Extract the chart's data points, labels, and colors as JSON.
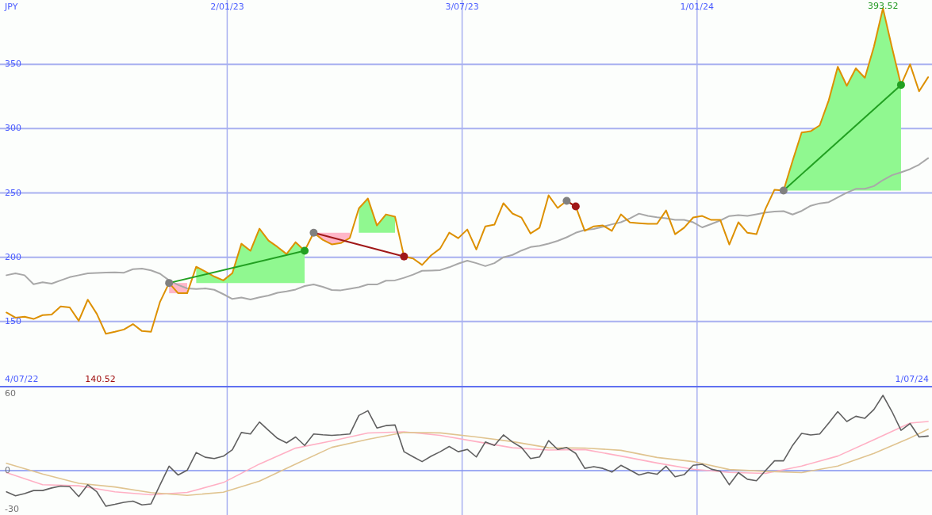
{
  "chart_data": [
    {
      "type": "line",
      "ylabel": "JPY",
      "xlim": [
        "2022-07-10",
        "2024-07-01"
      ],
      "ylim": [
        100,
        400
      ],
      "xticks": [
        {
          "value": "2023-01-02",
          "label": "2/01/23"
        },
        {
          "value": "2023-07-03",
          "label": "3/07/23"
        },
        {
          "value": "2024-01-01",
          "label": "1/01/24"
        }
      ],
      "yticks": [
        150,
        200,
        250,
        300,
        350
      ],
      "grid": true,
      "x": [
        "2022-07-15",
        "2022-07-22",
        "2022-07-29",
        "2022-08-05",
        "2022-08-12",
        "2022-08-19",
        "2022-08-26",
        "2022-09-02",
        "2022-09-09",
        "2022-09-16",
        "2022-09-23",
        "2022-09-30",
        "2022-10-07",
        "2022-10-14",
        "2022-10-21",
        "2022-10-28",
        "2022-11-04",
        "2022-11-11",
        "2022-11-18",
        "2022-11-25",
        "2022-12-02",
        "2022-12-09",
        "2022-12-16",
        "2022-12-23",
        "2022-12-30",
        "2023-01-06",
        "2023-01-13",
        "2023-01-20",
        "2023-01-27",
        "2023-02-03",
        "2023-02-10",
        "2023-02-17",
        "2023-02-24",
        "2023-03-03",
        "2023-03-10",
        "2023-03-17",
        "2023-03-24",
        "2023-03-31",
        "2023-04-07",
        "2023-04-14",
        "2023-04-21",
        "2023-04-28",
        "2023-05-05",
        "2023-05-12",
        "2023-05-19",
        "2023-05-26",
        "2023-06-02",
        "2023-06-09",
        "2023-06-16",
        "2023-06-23",
        "2023-06-30",
        "2023-07-07",
        "2023-07-14",
        "2023-07-21",
        "2023-07-28",
        "2023-08-04",
        "2023-08-11",
        "2023-08-18",
        "2023-08-25",
        "2023-09-01",
        "2023-09-08",
        "2023-09-15",
        "2023-09-22",
        "2023-09-29",
        "2023-10-06",
        "2023-10-13",
        "2023-10-20",
        "2023-10-27",
        "2023-11-03",
        "2023-11-10",
        "2023-11-17",
        "2023-11-24",
        "2023-12-01",
        "2023-12-08",
        "2023-12-15",
        "2023-12-22",
        "2023-12-29",
        "2024-01-05",
        "2024-01-12",
        "2024-01-19",
        "2024-01-26",
        "2024-02-02",
        "2024-02-09",
        "2024-02-16",
        "2024-02-23",
        "2024-03-01",
        "2024-03-08",
        "2024-03-15",
        "2024-03-22",
        "2024-03-29",
        "2024-04-05",
        "2024-04-12",
        "2024-04-19",
        "2024-04-26",
        "2024-05-03",
        "2024-05-10",
        "2024-05-17",
        "2024-05-24",
        "2024-05-31",
        "2024-06-07",
        "2024-06-14",
        "2024-06-21",
        "2024-06-28"
      ],
      "series": [
        {
          "color": "#ffb6c8",
          "x": [
            "2022-11-18",
            "2022-11-25",
            "2022-12-02"
          ],
          "values": [
            null,
            null,
            null
          ],
          "lower": [
            172,
            172,
            172
          ],
          "upper": [
            180,
            180,
            180
          ]
        },
        {
          "color": "#90f890",
          "x": [
            "2022-12-09",
            "2022-12-16",
            "2022-12-23",
            "2022-12-30",
            "2023-01-06",
            "2023-01-13",
            "2023-01-20",
            "2023-01-27",
            "2023-02-03",
            "2023-02-10",
            "2023-02-17",
            "2023-02-24",
            "2023-03-03"
          ],
          "values": [
            null,
            null,
            null,
            null,
            null,
            null,
            null,
            null,
            null,
            null,
            null,
            null,
            null
          ],
          "lower": [
            180,
            180,
            180,
            180,
            180,
            180,
            180,
            180,
            180,
            180,
            180,
            180,
            180
          ],
          "upper": [
            192.6,
            188.9,
            185,
            182,
            187.6,
            210.5,
            205,
            222.2,
            213,
            208,
            202.5,
            211.7,
            205
          ]
        },
        {
          "color": "#ffb6c8",
          "x": [
            "2023-03-10",
            "2023-03-17",
            "2023-03-24",
            "2023-03-31",
            "2023-04-07"
          ],
          "values": [
            null,
            null,
            null,
            null,
            null
          ],
          "lower": [
            219,
            213.6,
            210,
            211,
            215
          ],
          "upper": [
            219,
            219,
            219,
            219,
            219
          ]
        },
        {
          "color": "#90f890",
          "x": [
            "2023-04-14",
            "2023-04-21",
            "2023-04-28",
            "2023-05-05",
            "2023-05-12"
          ],
          "values": [
            null,
            null,
            null,
            null,
            null
          ],
          "lower": [
            219,
            219,
            219,
            219,
            219
          ],
          "upper": [
            238,
            245.7,
            224.7,
            233.3,
            231.5
          ]
        },
        {
          "color": "#90f890",
          "x": [
            "2024-03-08",
            "2024-03-15",
            "2024-03-22",
            "2024-03-29",
            "2024-04-05",
            "2024-04-12",
            "2024-04-19",
            "2024-04-26",
            "2024-05-03",
            "2024-05-10",
            "2024-05-17",
            "2024-05-24",
            "2024-05-31",
            "2024-06-07"
          ],
          "values": [
            null,
            null,
            null,
            null,
            null,
            null,
            null,
            null,
            null,
            null,
            null,
            null,
            null,
            null
          ],
          "lower": [
            251.9,
            251.9,
            251.9,
            251.9,
            251.9,
            251.9,
            251.9,
            251.9,
            251.9,
            251.9,
            251.9,
            251.9,
            251.9,
            251.9
          ],
          "upper": [
            251.9,
            275,
            297,
            298,
            302.5,
            322,
            348.1,
            333.3,
            346.9,
            339.5,
            363.6,
            393.52,
            363,
            334
          ]
        },
        {
          "color": "#a8a8a8",
          "values": [
            186,
            187.5,
            186,
            179,
            180.5,
            179.5,
            182,
            184.5,
            186,
            187.5,
            187.8,
            188.1,
            188.2,
            188,
            190.7,
            191.2,
            189.8,
            187.2,
            182,
            178.5,
            175.8,
            175.3,
            175.7,
            174.7,
            171.3,
            167.6,
            168.7,
            167.1,
            168.8,
            170.2,
            172.4,
            173.5,
            174.9,
            177.6,
            178.8,
            177,
            174.5,
            174.3,
            175.5,
            176.7,
            178.8,
            178.8,
            181.8,
            182,
            184,
            186.5,
            189.5,
            189.7,
            190,
            192.2,
            195,
            197.3,
            195.4,
            193.1,
            195.4,
            200,
            201.8,
            205.2,
            207.9,
            208.9,
            210.6,
            212.7,
            215.5,
            219,
            221.2,
            222,
            223.7,
            225.6,
            227.2,
            230.2,
            233.9,
            232.1,
            231,
            230.3,
            229,
            229,
            227.2,
            223.2,
            225.8,
            228.6,
            232,
            232.8,
            232.2,
            233.4,
            234.7,
            235.5,
            235.8,
            233.2,
            236,
            240,
            241.9,
            242.8,
            246.5,
            250.2,
            253.2,
            253.2,
            255.3,
            260,
            263.8,
            266,
            268.5,
            272,
            277
          ]
        },
        {
          "color": "#dd9000",
          "values": [
            157,
            153,
            153.7,
            152,
            155,
            155.5,
            161.7,
            161,
            150.6,
            167,
            156,
            140.52,
            142,
            143.8,
            148,
            142.6,
            142,
            165.4,
            180,
            172,
            172,
            192.6,
            188.9,
            185,
            182,
            187.6,
            210.5,
            205,
            222.2,
            213,
            208,
            202.5,
            211.7,
            205,
            219,
            213.6,
            210,
            211,
            215,
            238,
            245.7,
            224.7,
            233.3,
            231.5,
            200.6,
            199,
            194,
            201.5,
            206.8,
            219.1,
            214.8,
            221.6,
            206,
            224,
            225.3,
            242,
            234,
            230.8,
            218.5,
            223,
            248.1,
            238.3,
            243.8,
            239.5,
            220.5,
            224,
            224.7,
            220.5,
            233.3,
            227,
            226.5,
            226,
            226,
            236.4,
            217.9,
            223,
            230.9,
            232.1,
            229,
            229,
            209.9,
            227.2,
            219,
            217.9,
            237.6,
            252.5,
            251.9,
            275,
            297,
            298,
            302.5,
            322,
            348.1,
            333.3,
            346.9,
            339.5,
            363.6,
            393.52,
            363,
            334,
            350,
            329,
            340
          ]
        },
        {
          "color": "#22a022",
          "marker": "circle",
          "colors": [
            "#808080",
            "#22a022"
          ],
          "x": [
            "2022-11-18",
            "2023-03-03"
          ],
          "values": [
            180,
            205
          ]
        },
        {
          "color": "#a01818",
          "marker": "circle",
          "colors": [
            "#808080",
            "#a01818"
          ],
          "x": [
            "2023-03-10",
            "2023-05-19"
          ],
          "values": [
            219,
            200.6
          ]
        },
        {
          "color": "#a01818",
          "marker": "circle",
          "colors": [
            "#808080",
            "#a01818"
          ],
          "x": [
            "2023-09-22",
            "2023-09-29"
          ],
          "values": [
            243.8,
            239.5
          ]
        },
        {
          "color": "#22a022",
          "marker": "circle",
          "colors": [
            "#808080",
            "#22a022"
          ],
          "x": [
            "2024-03-08",
            "2024-06-07"
          ],
          "values": [
            251.9,
            334
          ]
        }
      ],
      "annotations": [
        "4/07/22",
        "140.52",
        "1/07/24",
        {
          "text": "393.52",
          "x": "2024-05-24",
          "y": 393.52
        }
      ]
    },
    {
      "type": "line",
      "xlim": [
        "2022-07-10",
        "2024-07-01"
      ],
      "ylim": [
        -34.6,
        65.6
      ],
      "xticks": [
        {
          "value": "2023-01-02",
          "label": null
        },
        {
          "value": "2023-07-03",
          "label": null
        },
        {
          "value": "2024-01-01",
          "label": null
        }
      ],
      "yticks": [
        60,
        0,
        -30
      ],
      "grid": "x",
      "tick_labels": "y",
      "ref_lines": [
        {
          "axis": "y",
          "value": 0
        }
      ],
      "x": [
        "2022-07-15",
        "2022-07-22",
        "2022-07-29",
        "2022-08-05",
        "2022-08-12",
        "2022-08-19",
        "2022-08-26",
        "2022-09-02",
        "2022-09-09",
        "2022-09-16",
        "2022-09-23",
        "2022-09-30",
        "2022-10-07",
        "2022-10-14",
        "2022-10-21",
        "2022-10-28",
        "2022-11-04",
        "2022-11-11",
        "2022-11-18",
        "2022-11-25",
        "2022-12-02",
        "2022-12-09",
        "2022-12-16",
        "2022-12-23",
        "2022-12-30",
        "2023-01-06",
        "2023-01-13",
        "2023-01-20",
        "2023-01-27",
        "2023-02-03",
        "2023-02-10",
        "2023-02-17",
        "2023-02-24",
        "2023-03-03",
        "2023-03-10",
        "2023-03-17",
        "2023-03-24",
        "2023-03-31",
        "2023-04-07",
        "2023-04-14",
        "2023-04-21",
        "2023-04-28",
        "2023-05-05",
        "2023-05-12",
        "2023-05-19",
        "2023-05-26",
        "2023-06-02",
        "2023-06-09",
        "2023-06-16",
        "2023-06-23",
        "2023-06-30",
        "2023-07-07",
        "2023-07-14",
        "2023-07-21",
        "2023-07-28",
        "2023-08-04",
        "2023-08-11",
        "2023-08-18",
        "2023-08-25",
        "2023-09-01",
        "2023-09-08",
        "2023-09-15",
        "2023-09-22",
        "2023-09-29",
        "2023-10-06",
        "2023-10-13",
        "2023-10-20",
        "2023-10-27",
        "2023-11-03",
        "2023-11-10",
        "2023-11-17",
        "2023-11-24",
        "2023-12-01",
        "2023-12-08",
        "2023-12-15",
        "2023-12-22",
        "2023-12-29",
        "2024-01-05",
        "2024-01-12",
        "2024-01-19",
        "2024-01-26",
        "2024-02-02",
        "2024-02-09",
        "2024-02-16",
        "2024-02-23",
        "2024-03-01",
        "2024-03-08",
        "2024-03-15",
        "2024-03-22",
        "2024-03-29",
        "2024-04-05",
        "2024-04-12",
        "2024-04-19",
        "2024-04-26",
        "2024-05-03",
        "2024-05-10",
        "2024-05-17",
        "2024-05-24",
        "2024-05-31",
        "2024-06-07",
        "2024-06-14",
        "2024-06-21",
        "2024-06-28"
      ],
      "series": [
        {
          "color": "#ffb0c4",
          "x": [
            "2022-07-15",
            "2022-08-12",
            "2022-09-09",
            "2022-10-07",
            "2022-11-04",
            "2022-12-02",
            "2022-12-30",
            "2023-01-27",
            "2023-02-24",
            "2023-03-24",
            "2023-04-21",
            "2023-05-19",
            "2023-06-16",
            "2023-07-14",
            "2023-08-11",
            "2023-09-08",
            "2023-10-06",
            "2023-11-03",
            "2023-12-01",
            "2023-12-29",
            "2024-01-26",
            "2024-02-23",
            "2024-03-22",
            "2024-04-19",
            "2024-05-17",
            "2024-06-14",
            "2024-06-28"
          ],
          "values": [
            -1.5,
            -10.9,
            -11.8,
            -16.5,
            -18.8,
            -17,
            -9.3,
            5.2,
            17.6,
            23.2,
            29.4,
            30.3,
            27.6,
            22.7,
            17.9,
            16.1,
            16.5,
            11.4,
            6,
            1.1,
            -1.4,
            -2.1,
            3.6,
            11.4,
            24.2,
            37.1,
            38.4
          ]
        },
        {
          "color": "#e0c490",
          "x": [
            "2022-07-15",
            "2022-08-12",
            "2022-09-09",
            "2022-10-07",
            "2022-11-04",
            "2022-12-02",
            "2022-12-30",
            "2023-01-27",
            "2023-02-24",
            "2023-03-24",
            "2023-04-21",
            "2023-05-19",
            "2023-06-16",
            "2023-07-14",
            "2023-08-11",
            "2023-09-08",
            "2023-10-06",
            "2023-11-03",
            "2023-12-01",
            "2023-12-29",
            "2024-01-26",
            "2024-02-23",
            "2024-03-22",
            "2024-04-19",
            "2024-05-17",
            "2024-06-14",
            "2024-06-28"
          ],
          "values": [
            5.8,
            -2.6,
            -9.9,
            -12.7,
            -17.1,
            -19.3,
            -16.8,
            -8.2,
            5.2,
            18.2,
            24.5,
            29.9,
            29.5,
            26.3,
            22.7,
            17.9,
            17.7,
            15.9,
            10.3,
            7.1,
            0.9,
            -0.5,
            -1.5,
            3.6,
            13.5,
            25.5,
            32.4
          ]
        },
        {
          "color": "#606060",
          "values": [
            -16.5,
            -19.6,
            -17.9,
            -15.5,
            -15.5,
            -13.5,
            -12,
            -12.5,
            -20.2,
            -11,
            -16.5,
            -27.7,
            -26.3,
            -24.7,
            -23.8,
            -26.7,
            -25.9,
            -11,
            3.5,
            -3.4,
            0.3,
            14.2,
            10.5,
            9.5,
            11.3,
            16.3,
            29.8,
            28.6,
            38,
            31.5,
            25.2,
            21.7,
            26.3,
            19.7,
            28.6,
            28,
            27.6,
            28,
            28.6,
            43.1,
            46.8,
            33.3,
            35.2,
            35.7,
            14.8,
            10.9,
            7.1,
            11.3,
            14.8,
            18.9,
            14.8,
            16.6,
            10.7,
            22.4,
            19.7,
            27.9,
            22.4,
            18.1,
            9.5,
            10.7,
            23.5,
            16.6,
            18.1,
            13.5,
            1.8,
            3.1,
            1.8,
            -1.1,
            4.2,
            0.5,
            -3.4,
            -1.5,
            -2.8,
            3.5,
            -4.7,
            -3.1,
            4.2,
            5,
            1.2,
            -0.4,
            -11,
            -1.5,
            -6.7,
            -7.8,
            0,
            7.7,
            7.7,
            19.7,
            29.1,
            27.9,
            28.6,
            37.2,
            46.1,
            38.4,
            42.5,
            40.9,
            47.7,
            58.8,
            46.1,
            31.5,
            36.8,
            26.3,
            27
          ]
        }
      ]
    }
  ]
}
